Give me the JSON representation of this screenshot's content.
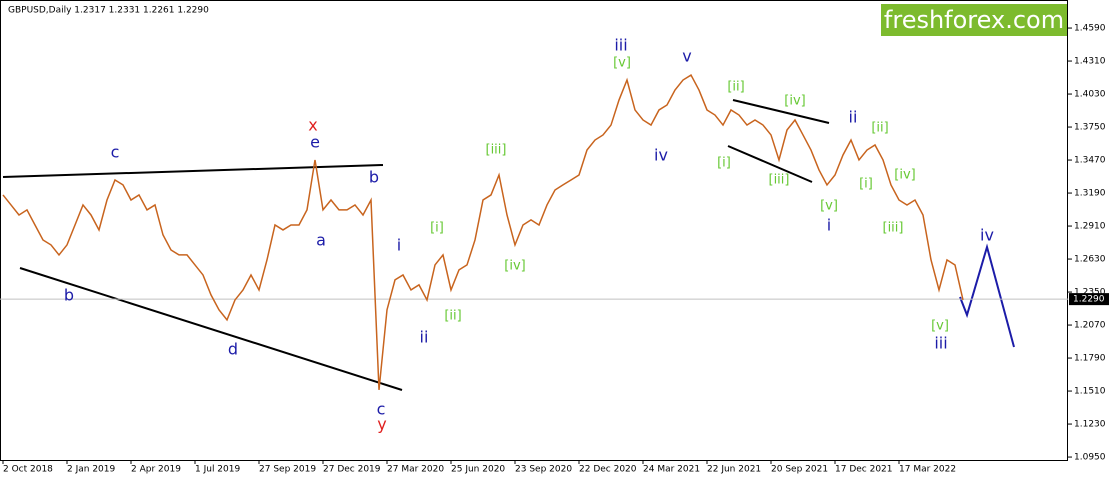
{
  "chart_data": {
    "type": "line",
    "title": "GBPUSD,Daily  1.2317 1.2331 1.2261 1.2290",
    "logo": "freshforex.com",
    "categories": [
      "2 Oct 2018",
      null,
      null,
      null,
      null,
      null,
      null,
      null,
      "2 Jan 2019",
      null,
      null,
      null,
      null,
      null,
      null,
      null,
      "2 Apr 2019",
      null,
      null,
      null,
      null,
      null,
      null,
      null,
      "1 Jul 2019",
      null,
      null,
      null,
      null,
      null,
      null,
      null,
      "27 Sep 2019",
      null,
      null,
      null,
      null,
      null,
      null,
      null,
      "27 Dec 2019",
      null,
      null,
      null,
      null,
      null,
      null,
      null,
      "27 Mar 2020",
      null,
      null,
      null,
      null,
      null,
      null,
      null,
      "25 Jun 2020",
      null,
      null,
      null,
      null,
      null,
      null,
      null,
      "23 Sep 2020",
      null,
      null,
      null,
      null,
      null,
      null,
      null,
      "22 Dec 2020",
      null,
      null,
      null,
      null,
      null,
      null,
      null,
      "24 Mar 2021",
      null,
      null,
      null,
      null,
      null,
      null,
      null,
      "22 Jun 2021",
      null,
      null,
      null,
      null,
      null,
      null,
      null,
      "20 Sep 2021",
      null,
      null,
      null,
      null,
      null,
      null,
      null,
      "17 Dec 2021",
      null,
      null,
      null,
      null,
      null,
      null,
      null,
      "17 Mar 2022",
      null,
      null,
      null,
      null,
      null,
      null,
      null,
      null
    ],
    "series": [
      {
        "name": "GBPUSD",
        "color": "#c8641e",
        "values": [
          1.3174,
          1.3089,
          1.3004,
          1.3047,
          1.2919,
          1.2792,
          1.275,
          1.2665,
          1.275,
          1.2919,
          1.3089,
          1.3004,
          1.2877,
          1.3131,
          1.3301,
          1.3259,
          1.3131,
          1.3174,
          1.3047,
          1.3089,
          1.2835,
          1.2707,
          1.2665,
          1.2665,
          1.258,
          1.2495,
          1.2326,
          1.2199,
          1.2114,
          1.2283,
          1.2368,
          1.2495,
          1.2368,
          1.2623,
          1.2919,
          1.2877,
          1.2919,
          1.2919,
          1.3047,
          1.3471,
          1.3047,
          1.3131,
          1.3047,
          1.3047,
          1.3089,
          1.3004,
          1.3131,
          1.152,
          1.2199,
          1.2453,
          1.2495,
          1.2368,
          1.2411,
          1.2283,
          1.258,
          1.2665,
          1.2368,
          1.2538,
          1.258,
          1.2792,
          1.3131,
          1.3174,
          1.3343,
          1.3004,
          1.275,
          1.2919,
          1.2962,
          1.2919,
          1.3089,
          1.3216,
          1.3259,
          1.3301,
          1.3343,
          1.3555,
          1.364,
          1.3683,
          1.3767,
          1.3979,
          1.4149,
          1.3895,
          1.381,
          1.3767,
          1.3895,
          1.3937,
          1.4064,
          1.4149,
          1.4191,
          1.4064,
          1.3895,
          1.3852,
          1.3767,
          1.3895,
          1.3852,
          1.3767,
          1.381,
          1.3767,
          1.3683,
          1.3471,
          1.3725,
          1.381,
          1.3683,
          1.3555,
          1.3386,
          1.3259,
          1.3343,
          1.3513,
          1.364,
          1.3471,
          1.3555,
          1.3598,
          1.3471,
          1.3259,
          1.3131,
          1.3089,
          1.3131,
          1.3004,
          1.2623,
          1.2368,
          1.2623,
          1.258,
          1.2283
        ]
      }
    ],
    "ylim": [
      1.0925,
      1.4828
    ],
    "yticks": [
      {
        "value": 1.459,
        "label": "1.4590"
      },
      {
        "value": 1.431,
        "label": "1.4310"
      },
      {
        "value": 1.403,
        "label": "1.4030"
      },
      {
        "value": 1.375,
        "label": "1.3750"
      },
      {
        "value": 1.347,
        "label": "1.3470"
      },
      {
        "value": 1.319,
        "label": "1.3190"
      },
      {
        "value": 1.291,
        "label": "1.2910"
      },
      {
        "value": 1.263,
        "label": "1.2630"
      },
      {
        "value": 1.235,
        "label": "1.2350"
      },
      {
        "value": 1.207,
        "label": "1.2070"
      },
      {
        "value": 1.179,
        "label": "1.1790"
      },
      {
        "value": 1.151,
        "label": "1.1510"
      },
      {
        "value": 1.123,
        "label": "1.1230"
      },
      {
        "value": 1.095,
        "label": "1.0950"
      }
    ],
    "last_price": {
      "value": 1.229,
      "label": "1.2290"
    },
    "annotations": [
      {
        "text": "c",
        "color": "#1c1ca8"
      },
      {
        "text": "x",
        "color": "#e0201f"
      },
      {
        "text": "e",
        "color": "#1c1ca8"
      },
      {
        "text": "b",
        "color": "#1c1ca8"
      },
      {
        "text": "a",
        "color": "#1c1ca8"
      },
      {
        "text": "b",
        "color": "#1c1ca8"
      },
      {
        "text": "d",
        "color": "#1c1ca8"
      },
      {
        "text": "c",
        "color": "#1c1ca8"
      },
      {
        "text": "y",
        "color": "#e0201f"
      },
      {
        "text": "i",
        "color": "#1c1ca8"
      },
      {
        "text": "ii",
        "color": "#1c1ca8"
      },
      {
        "text": "[i]",
        "color": "#66c833"
      },
      {
        "text": "[ii]",
        "color": "#66c833"
      },
      {
        "text": "[iii]",
        "color": "#66c833"
      },
      {
        "text": "[iv]",
        "color": "#66c833"
      },
      {
        "text": "iii",
        "color": "#1c1ca8"
      },
      {
        "text": "[v]",
        "color": "#66c833"
      },
      {
        "text": "iv",
        "color": "#1c1ca8"
      },
      {
        "text": "v",
        "color": "#1c1ca8"
      },
      {
        "text": "[ii]",
        "color": "#66c833"
      },
      {
        "text": "[iv]",
        "color": "#66c833"
      },
      {
        "text": "[i]",
        "color": "#66c833"
      },
      {
        "text": "[iii]",
        "color": "#66c833"
      },
      {
        "text": "ii",
        "color": "#1c1ca8"
      },
      {
        "text": "[ii]",
        "color": "#66c833"
      },
      {
        "text": "[i]",
        "color": "#66c833"
      },
      {
        "text": "[iv]",
        "color": "#66c833"
      },
      {
        "text": "[v]",
        "color": "#66c833"
      },
      {
        "text": "i",
        "color": "#1c1ca8"
      },
      {
        "text": "[iii]",
        "color": "#66c833"
      },
      {
        "text": "iv",
        "color": "#1c1ca8"
      },
      {
        "text": "[v]",
        "color": "#66c833"
      },
      {
        "text": "iii",
        "color": "#1c1ca8"
      }
    ]
  }
}
